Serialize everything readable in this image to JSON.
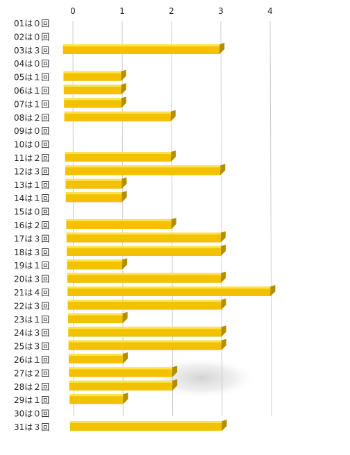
{
  "colors": {
    "bar_face": "#f2c200",
    "bar_top": "#ffe24a",
    "bar_bottom": "#8a6a00",
    "bar_end": "#b38f00",
    "grid": "#cccccc",
    "text": "#222222"
  },
  "chart_data": {
    "type": "bar",
    "orientation": "horizontal",
    "title": "",
    "xlabel": "",
    "ylabel": "",
    "xlim": [
      0,
      4
    ],
    "x_ticks": [
      "0",
      "1",
      "2",
      "3",
      "4"
    ],
    "tick_position": "top",
    "grid": true,
    "legend": "none",
    "style": "3d",
    "categories": [
      "01は０回",
      "02は０回",
      "03は３回",
      "04は０回",
      "05は１回",
      "06は１回",
      "07は１回",
      "08は２回",
      "09は０回",
      "10は０回",
      "11は２回",
      "12は３回",
      "13は１回",
      "14は１回",
      "15は０回",
      "16は２回",
      "17は３回",
      "18は３回",
      "19は１回",
      "20は３回",
      "21は４回",
      "22は３回",
      "23は１回",
      "24は３回",
      "25は３回",
      "26は１回",
      "27は２回",
      "28は２回",
      "29は１回",
      "30は０回",
      "31は３回"
    ],
    "values": [
      0,
      0,
      3,
      0,
      1,
      1,
      1,
      2,
      0,
      0,
      2,
      3,
      1,
      1,
      0,
      2,
      3,
      3,
      1,
      3,
      4,
      3,
      1,
      3,
      3,
      1,
      2,
      2,
      1,
      0,
      3
    ]
  }
}
